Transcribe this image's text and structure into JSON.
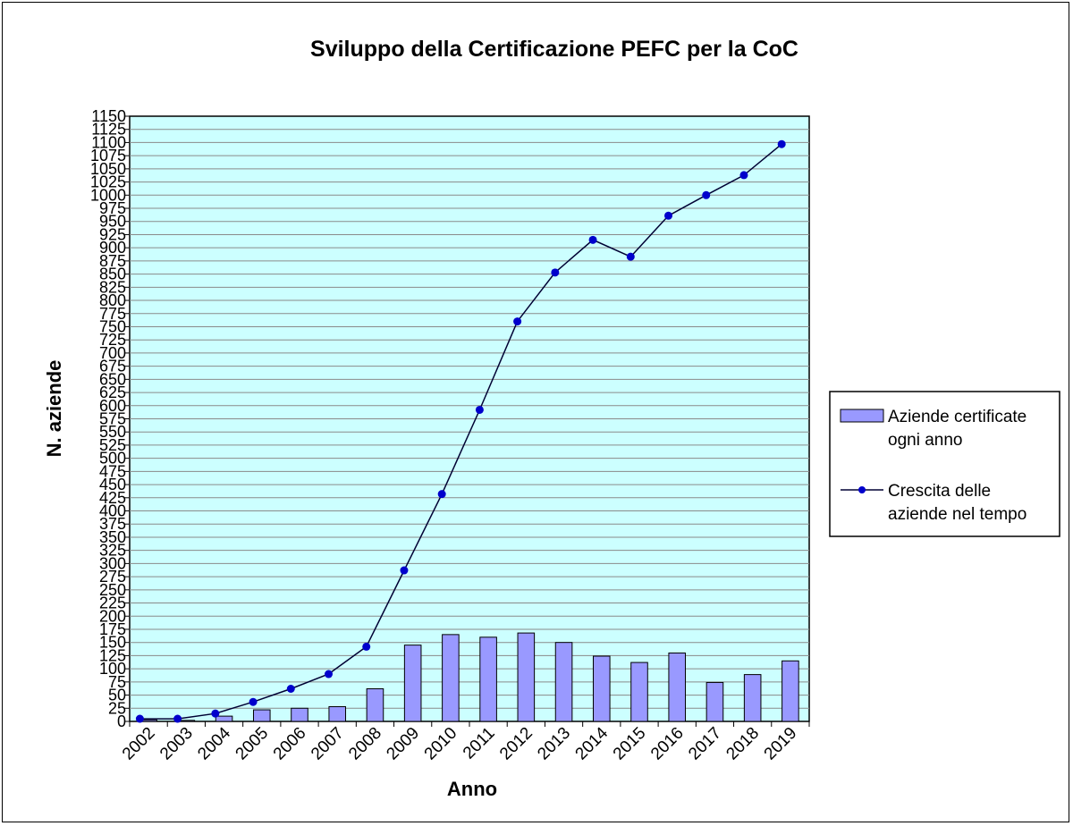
{
  "chart_data": {
    "type": "bar",
    "title": "Sviluppo della Certificazione PEFC per la CoC",
    "xlabel": "Anno",
    "ylabel": "N. aziende",
    "ylim": [
      0,
      1150
    ],
    "ytick_step": 25,
    "grid": true,
    "legend_position": "right",
    "plot_background": "#ccffff",
    "categories": [
      "2002",
      "2003",
      "2004",
      "2005",
      "2006",
      "2007",
      "2008",
      "2009",
      "2010",
      "2011",
      "2012",
      "2013",
      "2014",
      "2015",
      "2016",
      "2017",
      "2018",
      "2019"
    ],
    "series": [
      {
        "name": "Aziende certificate ogni anno",
        "type": "bar",
        "color": "#9999ff",
        "values": [
          3,
          2,
          10,
          22,
          25,
          28,
          62,
          145,
          165,
          160,
          168,
          150,
          124,
          112,
          130,
          74,
          89,
          115
        ]
      },
      {
        "name": "Crescita delle aziende nel tempo",
        "type": "line",
        "color": "#0000cc",
        "values": [
          5,
          5,
          15,
          37,
          62,
          90,
          142,
          287,
          432,
          592,
          760,
          853,
          915,
          883,
          961,
          1000,
          1038,
          1097
        ]
      }
    ],
    "legend": {
      "bars_label_line1": "Aziende certificate",
      "bars_label_line2": "ogni anno",
      "line_label_line1": "Crescita delle",
      "line_label_line2": "aziende nel tempo"
    }
  }
}
